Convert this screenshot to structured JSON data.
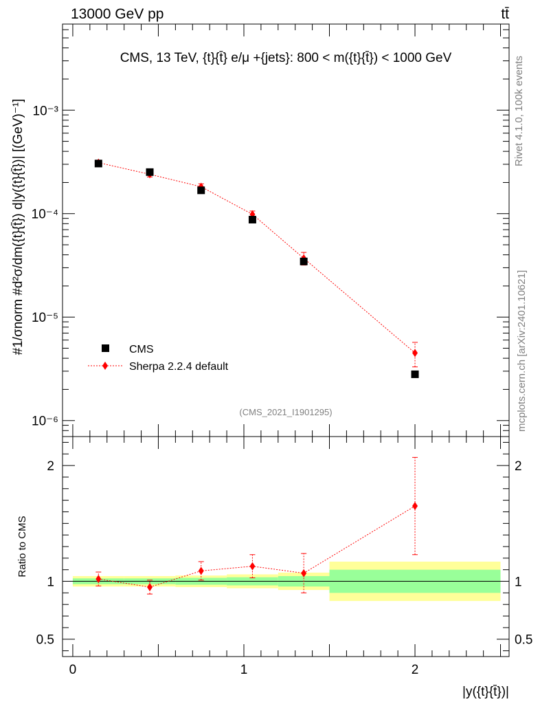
{
  "header": {
    "left": "13000 GeV pp",
    "right": "tt̄"
  },
  "side_labels": {
    "rivet": "Rivet 4.1.0,  100k events",
    "mcplots": "mcplots.cern.ch [arXiv:2401.10621]"
  },
  "colors": {
    "cms": "#000000",
    "sherpa": "#ff0000",
    "band_inner": "#99ff99",
    "band_outer": "#ffff99",
    "annotation": "#808080"
  },
  "chart_data": [
    {
      "type": "scatter",
      "panel": "main",
      "title": "CMS, 13 TeV, {t}{t̄} e/μ +{jets}: 800 < m({t}{t̄}) < 1000 GeV",
      "annotation": "(CMS_2021_I1901295)",
      "ylabel": "#1/σnorm #d²σ/dm({t}{t̄}) d|y({t}{t̄})| [(GeV)⁻¹]",
      "yscale": "log",
      "xlim": [
        -0.06,
        2.55
      ],
      "ylim": [
        7e-07,
        0.0068
      ],
      "y_ticks": [
        {
          "value": 1e-06,
          "label": "10⁻⁶"
        },
        {
          "value": 1e-05,
          "label": "10⁻⁵"
        },
        {
          "value": 0.0001,
          "label": "10⁻⁴"
        },
        {
          "value": 0.001,
          "label": "10⁻³"
        }
      ],
      "legend": {
        "placement": "bottom-left",
        "entries": [
          "CMS",
          "Sherpa 2.2.4 default"
        ]
      },
      "series": [
        {
          "name": "CMS",
          "marker": "square",
          "x": [
            0.15,
            0.45,
            0.75,
            1.05,
            1.35,
            2.0
          ],
          "y": [
            0.000305,
            0.000252,
            0.000168,
            8.75e-05,
            3.45e-05,
            2.8e-06
          ]
        },
        {
          "name": "Sherpa 2.2.4 default",
          "marker": "diamond",
          "line": "dotted",
          "x": [
            0.15,
            0.45,
            0.75,
            1.05,
            1.35,
            2.0
          ],
          "y": [
            0.000311,
            0.00024,
            0.000182,
            9.85e-05,
            3.7e-05,
            4.5e-06
          ],
          "yerr": [
            1.8e-05,
            1.4e-05,
            1.2e-05,
            7.5e-06,
            5.2e-06,
            1.2e-06
          ]
        }
      ]
    },
    {
      "type": "scatter",
      "panel": "ratio",
      "ylabel": "Ratio to CMS",
      "xlabel": "|y({t}{t̄})|",
      "xlim": [
        -0.06,
        2.55
      ],
      "ylim": [
        0.35,
        2.25
      ],
      "x_ticks": [
        {
          "value": 0,
          "label": "0"
        },
        {
          "value": 1,
          "label": "1"
        },
        {
          "value": 2,
          "label": "2"
        }
      ],
      "y_ticks": [
        {
          "value": 0.5,
          "label": "0.5"
        },
        {
          "value": 1,
          "label": "1"
        },
        {
          "value": 2,
          "label": "2"
        }
      ],
      "bands": [
        {
          "x0": 0.0,
          "x1": 0.3,
          "inner": [
            0.975,
            1.025
          ],
          "outer": [
            0.955,
            1.045
          ]
        },
        {
          "x0": 0.3,
          "x1": 0.6,
          "inner": [
            0.975,
            1.025
          ],
          "outer": [
            0.955,
            1.045
          ]
        },
        {
          "x0": 0.6,
          "x1": 0.9,
          "inner": [
            0.97,
            1.03
          ],
          "outer": [
            0.95,
            1.05
          ]
        },
        {
          "x0": 0.9,
          "x1": 1.2,
          "inner": [
            0.965,
            1.035
          ],
          "outer": [
            0.94,
            1.06
          ]
        },
        {
          "x0": 1.2,
          "x1": 1.5,
          "inner": [
            0.955,
            1.045
          ],
          "outer": [
            0.925,
            1.075
          ]
        },
        {
          "x0": 1.5,
          "x1": 2.5,
          "inner": [
            0.9,
            1.1
          ],
          "outer": [
            0.83,
            1.17
          ]
        }
      ],
      "series": [
        {
          "name": "Sherpa 2.2.4 default",
          "x": [
            0.15,
            0.45,
            0.75,
            1.05,
            1.35,
            2.0
          ],
          "y": [
            1.02,
            0.95,
            1.09,
            1.13,
            1.07,
            1.65
          ],
          "yerr": [
            0.06,
            0.06,
            0.08,
            0.1,
            0.17,
            0.42
          ]
        }
      ]
    }
  ]
}
